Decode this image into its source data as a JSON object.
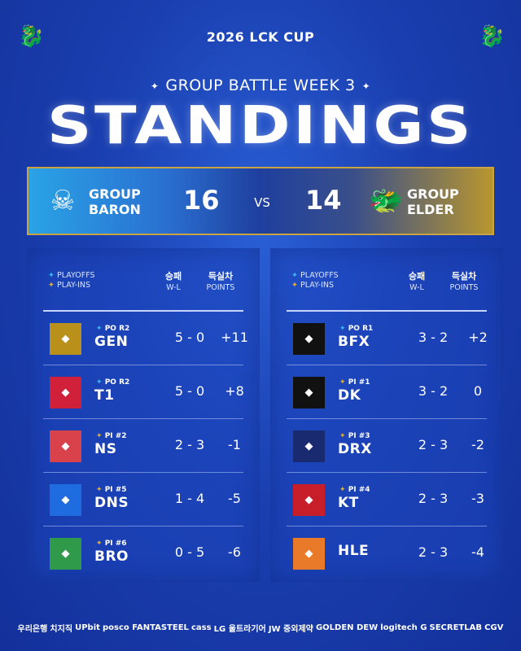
{
  "header": {
    "title": "2026 LCK CUP",
    "subtitle": "GROUP BATTLE WEEK 3",
    "heading": "STANDINGS",
    "star": "✦"
  },
  "banner": {
    "left_group": "GROUP\nBARON",
    "left_score": "16",
    "vs": "VS",
    "right_score": "14",
    "right_group": "GROUP\nELDER"
  },
  "colors": {
    "playoffs": "#3ab8f0",
    "playins": "#e0b030",
    "gold": "#c9a441"
  },
  "table_headers": {
    "playoffs": "PLAYOFFS",
    "playins": "PLAY-INS",
    "wl_ko": "승패",
    "wl": "W-L",
    "pts_ko": "득실차",
    "pts": "POINTS"
  },
  "baron": [
    {
      "team": "GEN",
      "tag": "PO R2",
      "type": "po",
      "wl": "5 - 0",
      "points": "+11",
      "logo_bg": "#b8901a"
    },
    {
      "team": "T1",
      "tag": "PO R2",
      "type": "po",
      "wl": "5 - 0",
      "points": "+8",
      "logo_bg": "#d0203a"
    },
    {
      "team": "NS",
      "tag": "PI #2",
      "type": "pi",
      "wl": "2 - 3",
      "points": "-1",
      "logo_bg": "#d9424a"
    },
    {
      "team": "DNS",
      "tag": "PI #5",
      "type": "pi",
      "wl": "1 - 4",
      "points": "-5",
      "logo_bg": "#1f6be0"
    },
    {
      "team": "BRO",
      "tag": "PI #6",
      "type": "pi",
      "wl": "0 - 5",
      "points": "-6",
      "logo_bg": "#2f9a4a"
    }
  ],
  "elder": [
    {
      "team": "BFX",
      "tag": "PO R1",
      "type": "po",
      "wl": "3 - 2",
      "points": "+2",
      "logo_bg": "#111111"
    },
    {
      "team": "DK",
      "tag": "PI #1",
      "type": "pi",
      "wl": "3 - 2",
      "points": "0",
      "logo_bg": "#111111"
    },
    {
      "team": "DRX",
      "tag": "PI #3",
      "type": "pi",
      "wl": "2 - 3",
      "points": "-2",
      "logo_bg": "#1a2a70"
    },
    {
      "team": "KT",
      "tag": "PI #4",
      "type": "pi",
      "wl": "2 - 3",
      "points": "-3",
      "logo_bg": "#c81e2a"
    },
    {
      "team": "HLE",
      "tag": "",
      "type": "",
      "wl": "2 - 3",
      "points": "-4",
      "logo_bg": "#e87a2a"
    }
  ],
  "sponsors": [
    "우리은행",
    "치지직",
    "UPbit",
    "posco FANTASTEEL",
    "cass",
    "LG 울트라기어",
    "JW 중외제약",
    "GOLDEN DEW",
    "logitech G",
    "SECRETLAB",
    "CGV"
  ]
}
